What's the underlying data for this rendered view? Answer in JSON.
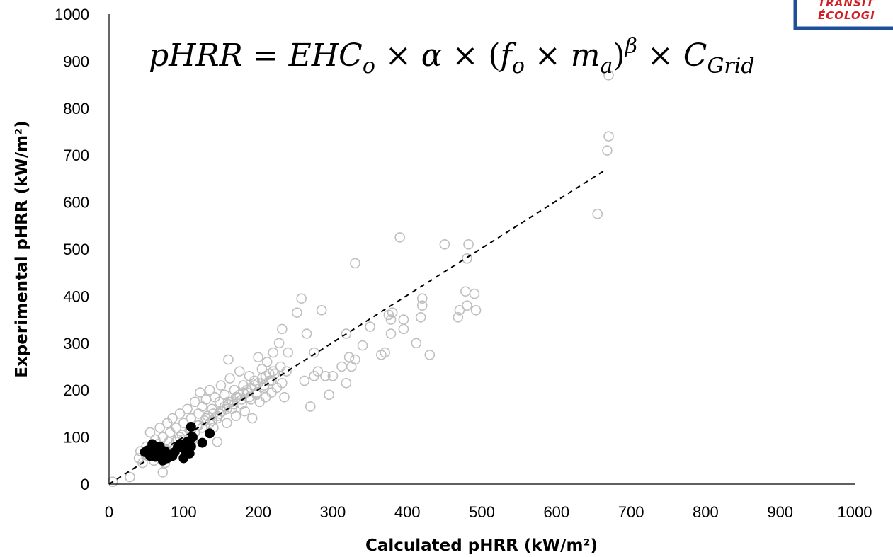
{
  "logo": {
    "line1": "TRANSIT",
    "line2": "ÉCOLOGI",
    "border_color": "#1f4e9b",
    "text_color": "#d11f26"
  },
  "equation": {
    "lhs": "pHRR",
    "eq": "=",
    "t1": "EHC",
    "t1_sub": "o",
    "times": "×",
    "alpha": "α",
    "f": "f",
    "f_sub": "o",
    "m": "m",
    "m_sub": "a",
    "beta": "β",
    "C": "C",
    "C_sub": "Grid"
  },
  "chart_data": {
    "type": "scatter",
    "title": "",
    "xlabel": "Calculated pHRR (kW/m²)",
    "ylabel": "Experimental pHRR (kW/m²)",
    "xlim": [
      0,
      1000
    ],
    "ylim": [
      0,
      1000
    ],
    "x_ticks": [
      "0",
      "100",
      "200",
      "300",
      "400",
      "500",
      "600",
      "700",
      "800",
      "900",
      "1000"
    ],
    "y_ticks": [
      "0",
      "100",
      "200",
      "300",
      "400",
      "500",
      "600",
      "700",
      "800",
      "900",
      "1000"
    ],
    "grid": false,
    "legend": "none",
    "colors": {
      "open_series": "#bfbfbf",
      "filled_series": "#000000",
      "fit_line": "#000000"
    },
    "fit_line": {
      "style": "dashed",
      "x": [
        0,
        665
      ],
      "y": [
        0,
        668
      ]
    },
    "series": [
      {
        "marker": "open-circle",
        "x": [
          5,
          28,
          40,
          42,
          45,
          48,
          50,
          52,
          55,
          58,
          60,
          62,
          65,
          68,
          70,
          72,
          75,
          78,
          80,
          82,
          85,
          88,
          90,
          92,
          95,
          98,
          100,
          102,
          105,
          108,
          110,
          112,
          115,
          118,
          120,
          122,
          125,
          128,
          130,
          132,
          135,
          138,
          140,
          142,
          145,
          148,
          150,
          152,
          155,
          158,
          160,
          162,
          165,
          168,
          170,
          172,
          175,
          178,
          180,
          182,
          185,
          188,
          190,
          192,
          195,
          198,
          200,
          202,
          205,
          208,
          210,
          212,
          215,
          218,
          220,
          222,
          225,
          228,
          230,
          232,
          235,
          238,
          60,
          75,
          85,
          95,
          110,
          120,
          130,
          140,
          150,
          160,
          170,
          180,
          190,
          200,
          210,
          220,
          100,
          115,
          135,
          145,
          155,
          165,
          175,
          185,
          195,
          205,
          215,
          70,
          90,
          125,
          138,
          148,
          158,
          168,
          178,
          188,
          198,
          208,
          218,
          72,
          145,
          160,
          232,
          240,
          252,
          262,
          265,
          270,
          275,
          280,
          285,
          290,
          295,
          258,
          275,
          300,
          312,
          318,
          322,
          318,
          325,
          330,
          340,
          350,
          365,
          370,
          375,
          378,
          378,
          380,
          395,
          395,
          412,
          418,
          420,
          420,
          430,
          468,
          470,
          478,
          480,
          482,
          490,
          492,
          450,
          480,
          390,
          330,
          655,
          668,
          670,
          670
        ],
        "y": [
          5,
          15,
          55,
          70,
          45,
          65,
          80,
          60,
          110,
          75,
          50,
          95,
          85,
          120,
          60,
          100,
          45,
          130,
          90,
          110,
          140,
          75,
          120,
          95,
          150,
          105,
          130,
          85,
          160,
          115,
          140,
          95,
          175,
          125,
          150,
          195,
          165,
          135,
          180,
          145,
          200,
          160,
          120,
          185,
          140,
          175,
          210,
          155,
          190,
          130,
          175,
          225,
          160,
          200,
          145,
          185,
          240,
          170,
          210,
          155,
          195,
          230,
          180,
          140,
          220,
          190,
          270,
          175,
          245,
          210,
          185,
          260,
          220,
          195,
          280,
          235,
          205,
          300,
          250,
          215,
          185,
          240,
          65,
          75,
          80,
          100,
          115,
          125,
          140,
          150,
          155,
          170,
          185,
          195,
          205,
          215,
          230,
          240,
          95,
          110,
          130,
          145,
          165,
          175,
          190,
          200,
          210,
          225,
          235,
          70,
          90,
          120,
          135,
          150,
          160,
          170,
          180,
          185,
          195,
          205,
          220,
          25,
          90,
          265,
          330,
          280,
          365,
          220,
          320,
          165,
          280,
          240,
          370,
          230,
          190,
          395,
          230,
          230,
          250,
          215,
          270,
          320,
          250,
          470,
          295,
          335,
          275,
          280,
          360,
          350,
          320,
          365,
          350,
          330,
          300,
          355,
          395,
          380,
          275,
          355,
          370,
          410,
          380,
          510,
          405,
          370,
          510,
          480,
          525,
          265,
          575,
          710,
          740,
          870
        ]
      },
      {
        "marker": "filled-circle",
        "x": [
          48,
          52,
          55,
          58,
          60,
          62,
          65,
          68,
          70,
          72,
          75,
          78,
          80,
          85,
          88,
          92,
          95,
          100,
          102,
          105,
          108,
          110,
          112,
          125,
          135,
          95,
          110
        ],
        "y": [
          68,
          72,
          60,
          85,
          78,
          58,
          72,
          80,
          65,
          50,
          70,
          55,
          62,
          60,
          68,
          78,
          85,
          55,
          72,
          90,
          65,
          80,
          100,
          88,
          108,
          82,
          122
        ]
      }
    ]
  }
}
